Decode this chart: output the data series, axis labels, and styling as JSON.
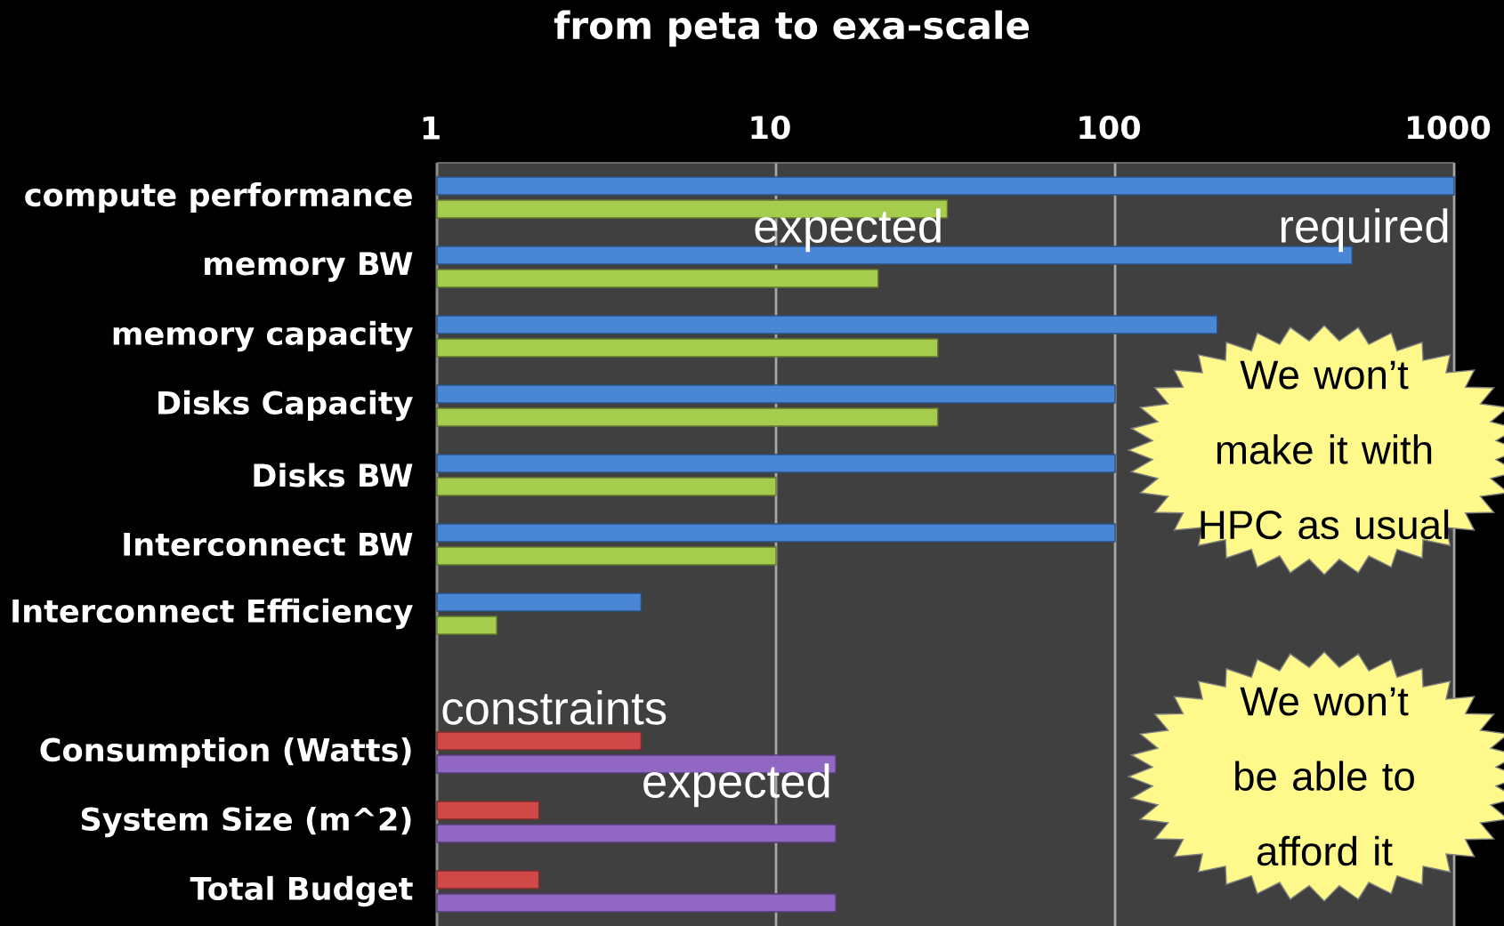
{
  "chart_data": {
    "type": "bar",
    "orientation": "horizontal",
    "title": "from peta to exa-scale",
    "categories": [
      "compute performance",
      "memory BW",
      "memory capacity",
      "Disks Capacity",
      "Disks BW",
      "Interconnect BW",
      "Interconnect Efficiency",
      null,
      "Consumption (Watts)",
      "System Size (m^2)",
      "Total Budget"
    ],
    "series": [
      {
        "colors": [
          "#4a86d6",
          "#4a86d6",
          "#4a86d6",
          "#4a86d6",
          "#4a86d6",
          "#4a86d6",
          "#4a86d6",
          null,
          "#d04848",
          "#d04848",
          "#d04848"
        ],
        "values": [
          1000,
          500,
          200,
          100,
          100,
          100,
          4,
          null,
          4,
          2,
          2
        ]
      },
      {
        "colors": [
          "#a6cc4e",
          "#a6cc4e",
          "#a6cc4e",
          "#a6cc4e",
          "#a6cc4e",
          "#a6cc4e",
          "#a6cc4e",
          null,
          "#9068c4",
          "#9068c4",
          "#9068c4"
        ],
        "values": [
          32,
          20,
          30,
          30,
          10,
          10,
          1.5,
          null,
          15,
          15,
          15
        ]
      }
    ],
    "log": "x",
    "xlim": [
      1,
      1000
    ],
    "xticks": [
      1,
      10,
      100,
      1000
    ],
    "grid": "x",
    "annotations": [
      {
        "text": "required",
        "x": 1000,
        "y": "compute performance"
      },
      {
        "text": "expected",
        "x": 32,
        "y": "compute performance"
      },
      {
        "text": "constraints",
        "x": 1,
        "y": "Consumption (Watts)"
      },
      {
        "text": "expected",
        "x": 15,
        "y": "Consumption (Watts)"
      },
      "We won’t make it with HPC as usual",
      "We won’t be able to afford it"
    ]
  }
}
